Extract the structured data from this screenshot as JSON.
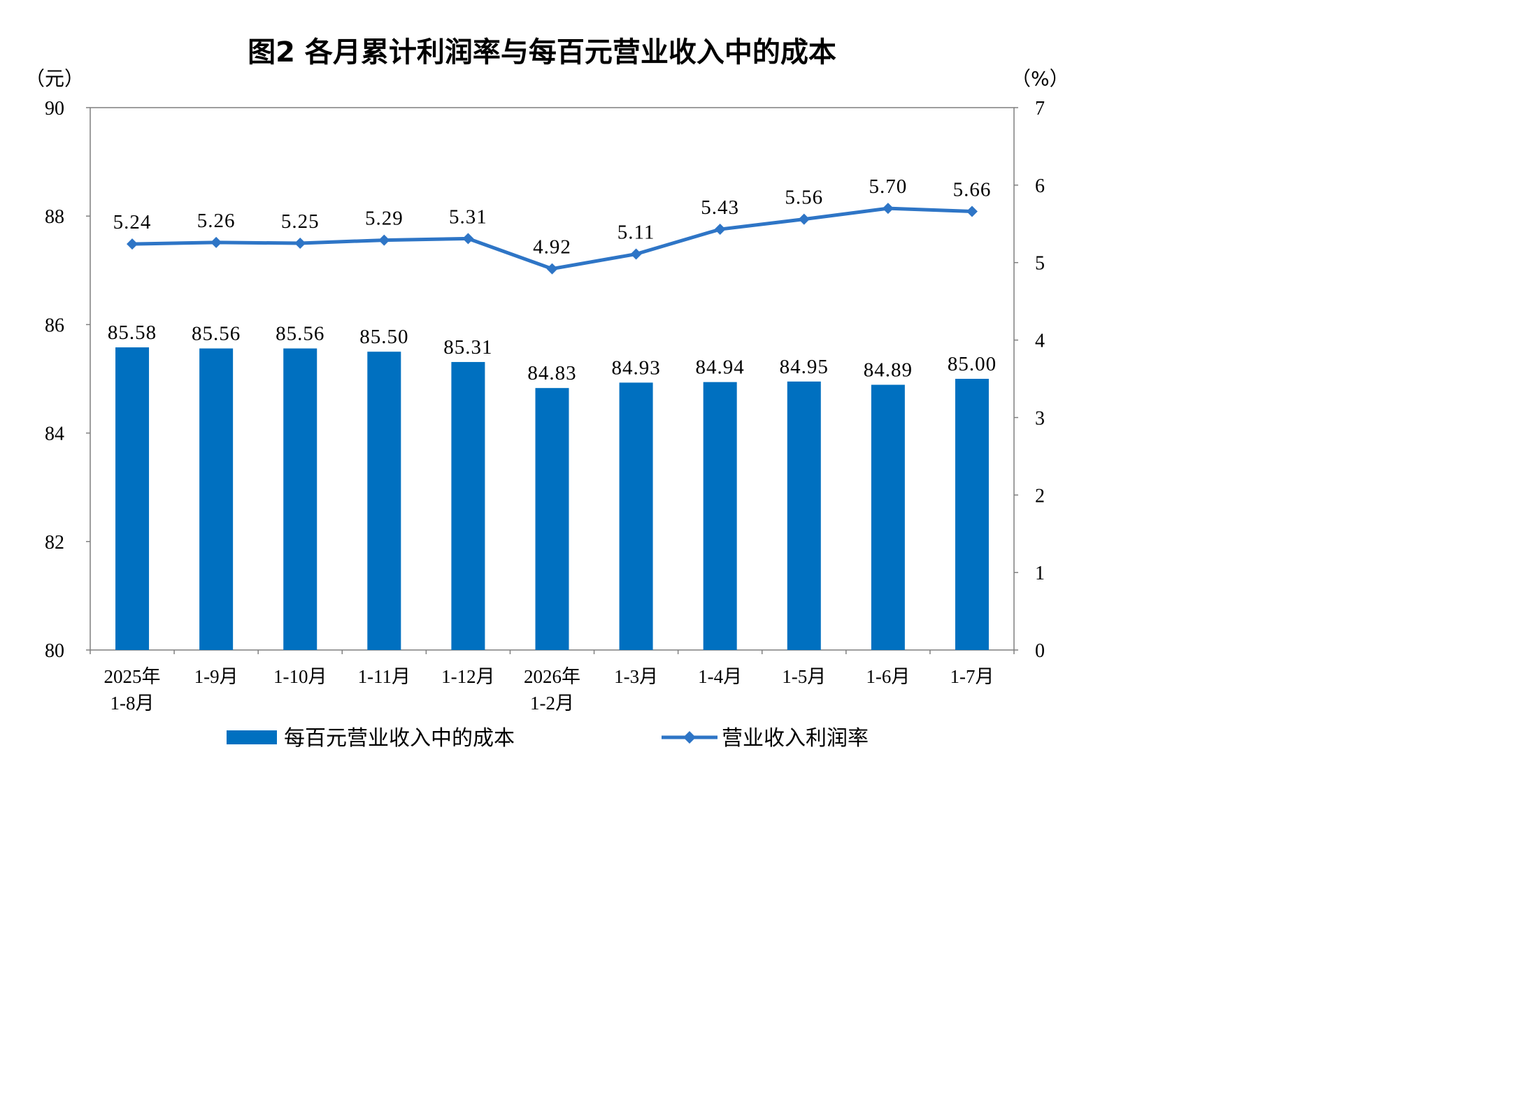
{
  "chart_data": {
    "type": "bar",
    "title": "图2  各月累计利润率与每百元营业收入中的成本",
    "y_left_unit": "（元）",
    "y_right_unit": "（%）",
    "y_left_lim": [
      80,
      90
    ],
    "y_left_ticks": [
      "80",
      "82",
      "84",
      "86",
      "88",
      "90"
    ],
    "y_right_lim": [
      0,
      7
    ],
    "y_right_ticks": [
      "0",
      "1",
      "2",
      "3",
      "4",
      "5",
      "6",
      "7"
    ],
    "categories": [
      [
        "2025年",
        "1-8月"
      ],
      [
        "1-9月"
      ],
      [
        "1-10月"
      ],
      [
        "1-11月"
      ],
      [
        "1-12月"
      ],
      [
        "2026年",
        "1-2月"
      ],
      [
        "1-3月"
      ],
      [
        "1-4月"
      ],
      [
        "1-5月"
      ],
      [
        "1-6月"
      ],
      [
        "1-7月"
      ]
    ],
    "series": [
      {
        "name": "每百元营业收入中的成本",
        "type": "bar",
        "axis": "left",
        "color": "#0070C0",
        "values": [
          85.58,
          85.56,
          85.56,
          85.5,
          85.31,
          84.83,
          84.93,
          84.94,
          84.95,
          84.89,
          85.0
        ],
        "labels": [
          "85.58",
          "85.56",
          "85.56",
          "85.50",
          "85.31",
          "84.83",
          "84.93",
          "84.94",
          "84.95",
          "84.89",
          "85.00"
        ]
      },
      {
        "name": "营业收入利润率",
        "type": "line",
        "axis": "right",
        "color": "#2E75C6",
        "marker": "diamond",
        "values": [
          5.24,
          5.26,
          5.25,
          5.29,
          5.31,
          4.92,
          5.11,
          5.43,
          5.56,
          5.7,
          5.66
        ],
        "labels": [
          "5.24",
          "5.26",
          "5.25",
          "5.29",
          "5.31",
          "4.92",
          "5.11",
          "5.43",
          "5.56",
          "5.70",
          "5.66"
        ]
      }
    ],
    "grid": false,
    "legend_position": "bottom"
  }
}
